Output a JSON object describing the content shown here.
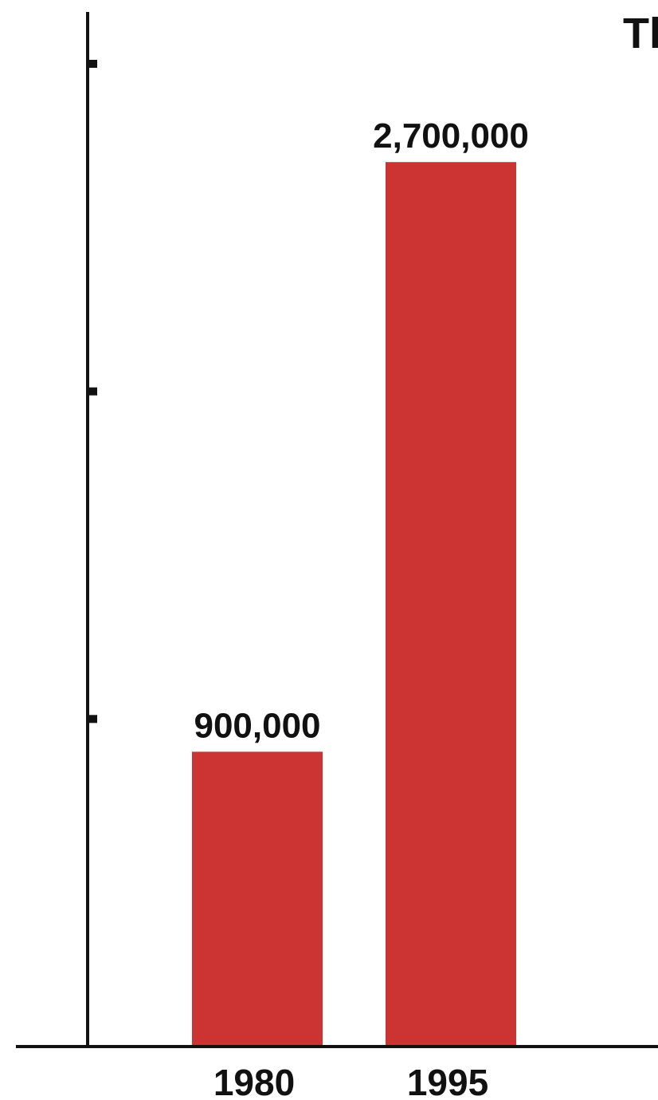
{
  "chart_data": {
    "type": "bar",
    "title": "Tl",
    "categories": [
      "1980",
      "1995"
    ],
    "values": [
      900000,
      2700000
    ],
    "value_labels": [
      "900,000",
      "2,700,000"
    ],
    "xlabel": "",
    "ylabel": "",
    "ylim": [
      0,
      3000000
    ],
    "grid": false,
    "bar_color": "#cc3333",
    "axis_color": "#111111"
  }
}
